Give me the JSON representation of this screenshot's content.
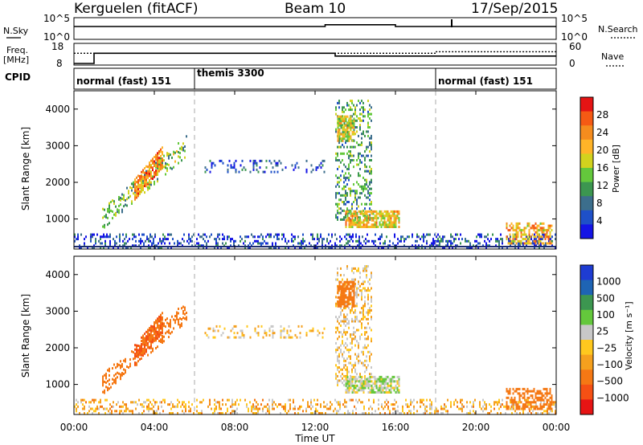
{
  "header": {
    "station": "Kerguelen (fitACF)",
    "beam": "Beam 10",
    "date": "17/Sep/2015"
  },
  "summary_panels": {
    "noise": {
      "left_label": "N.Sky",
      "right_label": "N.Search",
      "left_ticks": [
        "10^5",
        "10^0"
      ],
      "right_ticks": [
        "10^5",
        "10^0"
      ]
    },
    "frequency": {
      "left_label_1": "Freq.",
      "left_label_2": "[MHz]",
      "left_ticks": [
        "18",
        "8"
      ],
      "right_ticks": [
        "60",
        "0"
      ],
      "right_label": "Nave"
    },
    "cpid": {
      "label": "CPID",
      "segments": [
        "normal (fast) 151",
        "themis 3300",
        "normal (fast) 151"
      ]
    }
  },
  "power_colorbar": {
    "label": "Power [dB]",
    "ticks": [
      "28",
      "24",
      "20",
      "16",
      "12",
      "8",
      "4"
    ],
    "colors": [
      "#e51414",
      "#f55a14",
      "#f58c1e",
      "#ffb428",
      "#d2d21e",
      "#64c83c",
      "#3c9650",
      "#3c6e8c",
      "#1e50c8",
      "#1414e6"
    ]
  },
  "velocity_colorbar": {
    "label": "Velocity [m s⁻¹]",
    "ticks": [
      "1000",
      "500",
      "100",
      "25",
      "−25",
      "−100",
      "−500",
      "−1000"
    ],
    "colors": [
      "#1e3cd2",
      "#1e64b4",
      "#3c9650",
      "#64c83c",
      "#c8c8c8",
      "#ffc81e",
      "#f5a01e",
      "#f57814",
      "#f55014",
      "#e61414"
    ]
  },
  "axes": {
    "xlabel": "Time UT",
    "ylabel": "Slant Range [km]",
    "x_ticks": [
      "00:00",
      "04:00",
      "08:00",
      "12:00",
      "16:00",
      "20:00",
      "00:00"
    ],
    "y_ticks": [
      "4000",
      "3000",
      "2000",
      "1000"
    ]
  },
  "chart_data": {
    "type": "heatmap",
    "title": "Kerguelen (fitACF)",
    "xlabel": "Time UT",
    "ylabel": "Slant Range [km]",
    "xlim": [
      0,
      24
    ],
    "ylim": [
      180,
      4500
    ],
    "x_ticks": [
      0,
      4,
      8,
      12,
      16,
      20,
      24
    ],
    "y_ticks": [
      1000,
      2000,
      3000,
      4000
    ],
    "mode_boundaries_hours": [
      6.0,
      18.0
    ],
    "cpid_modes": [
      {
        "name": "normal (fast) 151",
        "start": 0,
        "end": 6
      },
      {
        "name": "themis 3300",
        "start": 6,
        "end": 18
      },
      {
        "name": "normal (fast) 151",
        "start": 18,
        "end": 24
      }
    ],
    "frequency_mhz": [
      {
        "start": 0,
        "end": 1.0,
        "value": 8.0
      },
      {
        "start": 1.0,
        "end": 13.0,
        "value": 13.5
      },
      {
        "start": 13.0,
        "end": 24,
        "value": 12.0
      }
    ],
    "nave": [
      {
        "start": 0,
        "end": 18.0,
        "value": 33
      },
      {
        "start": 18.0,
        "end": 24,
        "value": 38
      }
    ],
    "noise_sky": [
      {
        "start": 0,
        "end": 12.5,
        "value": 3.4
      },
      {
        "start": 12.5,
        "end": 16.0,
        "value": 3.9
      },
      {
        "start": 16.0,
        "end": 24,
        "value": 3.4
      }
    ],
    "scatter_regions": [
      {
        "t": [
          1.4,
          5.6
        ],
        "r": [
          1000,
          3000
        ],
        "slope": true,
        "power": 14,
        "velocity": -300,
        "density": 0.35
      },
      {
        "t": [
          3.0,
          4.4
        ],
        "r": [
          1800,
          2700
        ],
        "slope": true,
        "power": 24,
        "velocity": -500,
        "density": 0.75
      },
      {
        "t": [
          6.5,
          12.5
        ],
        "r": [
          2250,
          2600
        ],
        "slope": false,
        "power": 6,
        "velocity": 0,
        "density": 0.18
      },
      {
        "t": [
          13.0,
          14.8
        ],
        "r": [
          950,
          4200
        ],
        "slope": false,
        "power": 12,
        "velocity": 0,
        "density": 0.3
      },
      {
        "t": [
          13.1,
          13.9
        ],
        "r": [
          3100,
          3800
        ],
        "slope": false,
        "power": 18,
        "velocity": -400,
        "density": 0.8
      },
      {
        "t": [
          13.5,
          16.2
        ],
        "r": [
          750,
          1200
        ],
        "slope": false,
        "power": 20,
        "velocity": 80,
        "density": 0.75
      },
      {
        "t": [
          0,
          24
        ],
        "r": [
          180,
          560
        ],
        "slope": false,
        "power": 6,
        "velocity": -30,
        "density": 0.3
      },
      {
        "t": [
          21.5,
          23.8
        ],
        "r": [
          300,
          850
        ],
        "slope": false,
        "power": 22,
        "velocity": -400,
        "density": 0.5
      }
    ]
  }
}
